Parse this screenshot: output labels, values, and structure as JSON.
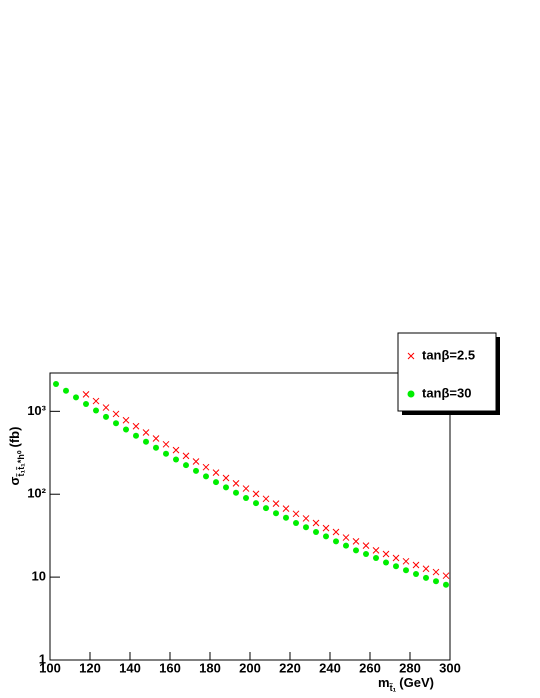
{
  "chart_data": {
    "type": "scatter",
    "x_label": "m",
    "x_label_sub": "t̃₁",
    "x_label_unit": "(GeV)",
    "y_label": "σ",
    "y_label_sub": "t̃₁t̃₁*h⁰",
    "y_label_unit": "(fb)",
    "xlim": [
      100,
      300
    ],
    "xticks": [
      100,
      120,
      140,
      160,
      180,
      200,
      220,
      240,
      260,
      280,
      300
    ],
    "ylim": [
      1,
      2900
    ],
    "log_y": true,
    "yticks": [
      1,
      10,
      {
        "value": 100,
        "label": "10²"
      },
      {
        "value": 1000,
        "label": "10³"
      }
    ],
    "legend": "top-right",
    "series": [
      {
        "name": "tanβ=2.5",
        "color": "#ff0000",
        "marker": "x",
        "x": [
          118,
          123,
          128,
          133,
          138,
          143,
          148,
          153,
          158,
          163,
          168,
          173,
          178,
          183,
          188,
          193,
          198,
          203,
          208,
          213,
          218,
          223,
          228,
          233,
          238,
          243,
          248,
          253,
          258,
          263,
          268,
          273,
          278,
          283,
          288,
          293,
          298
        ],
        "values": [
          1600,
          1330,
          1110,
          930,
          780,
          660,
          555,
          470,
          400,
          340,
          290,
          248,
          212,
          182,
          157,
          135,
          117,
          101,
          88,
          77,
          67,
          58,
          51,
          45,
          39,
          35,
          30,
          27,
          24,
          21,
          19,
          17,
          15.5,
          14,
          12.6,
          11.5,
          10.4
        ]
      },
      {
        "name": "tanβ=30",
        "color": "#00ee00",
        "marker": "dot",
        "x": [
          103,
          108,
          113,
          118,
          123,
          128,
          133,
          138,
          143,
          148,
          153,
          158,
          163,
          168,
          173,
          178,
          183,
          188,
          193,
          198,
          203,
          208,
          213,
          218,
          223,
          228,
          233,
          238,
          243,
          248,
          253,
          258,
          263,
          268,
          273,
          278,
          283,
          288,
          293,
          298
        ],
        "values": [
          2138,
          1772,
          1472,
          1226,
          1023,
          856,
          717,
          603,
          508,
          429,
          363,
          308,
          262,
          224,
          191,
          164,
          140,
          121,
          104,
          90,
          78,
          68,
          59,
          52,
          45,
          40,
          35,
          31,
          27,
          24,
          21,
          19,
          17,
          15,
          13.5,
          12.1,
          10.9,
          9.8,
          8.9,
          8.1
        ]
      }
    ]
  }
}
